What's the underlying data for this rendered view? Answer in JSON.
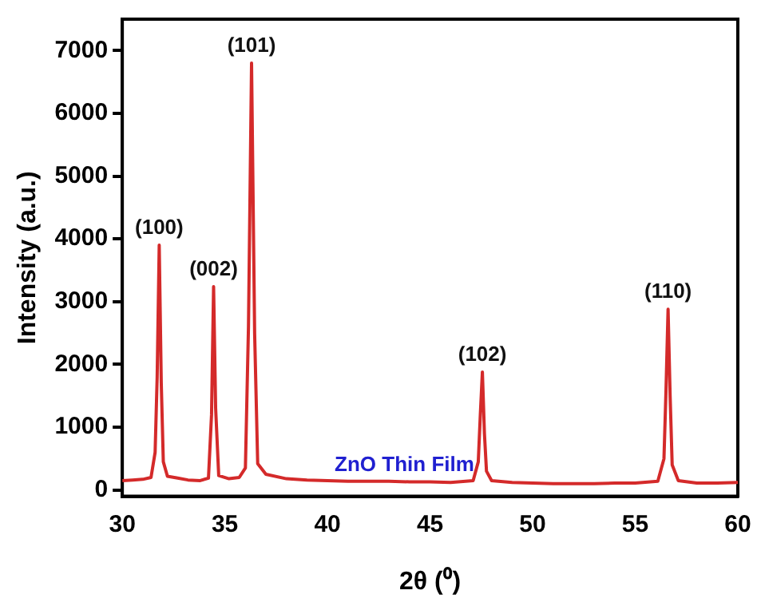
{
  "chart_data": {
    "type": "line",
    "xlabel": "2θ (⁰)",
    "ylabel": "Intensity (a.u.)",
    "x": [
      30,
      30.5,
      31,
      31.4,
      31.6,
      31.7,
      31.8,
      31.9,
      32.0,
      32.2,
      32.7,
      33.2,
      33.8,
      34.2,
      34.35,
      34.45,
      34.55,
      34.7,
      35.2,
      35.7,
      36.0,
      36.15,
      36.3,
      36.45,
      36.6,
      37.0,
      38,
      39,
      40,
      41,
      42,
      43,
      44,
      45,
      46,
      47.1,
      47.35,
      47.45,
      47.55,
      47.65,
      47.75,
      48.0,
      49,
      50,
      51,
      52,
      53,
      54,
      55,
      56.1,
      56.4,
      56.5,
      56.6,
      56.7,
      56.8,
      57.1,
      58,
      59,
      60
    ],
    "series": [
      {
        "color": "#d42a2a",
        "values": [
          150,
          160,
          170,
          200,
          600,
          1800,
          3900,
          1700,
          450,
          220,
          190,
          160,
          150,
          190,
          1200,
          3240,
          1300,
          230,
          180,
          200,
          350,
          2600,
          6800,
          2500,
          420,
          250,
          180,
          160,
          150,
          140,
          140,
          140,
          130,
          130,
          120,
          150,
          450,
          1200,
          1880,
          900,
          300,
          150,
          120,
          110,
          100,
          100,
          100,
          110,
          110,
          140,
          500,
          1600,
          2880,
          1500,
          400,
          150,
          110,
          110,
          120
        ]
      }
    ],
    "xlim": [
      30,
      60
    ],
    "xticks": [
      30,
      35,
      40,
      45,
      50,
      55,
      60
    ],
    "ylim": [
      -100,
      7500
    ],
    "yticks": [
      0,
      1000,
      2000,
      3000,
      4000,
      5000,
      6000,
      7000
    ],
    "grid": false,
    "legend": false,
    "marker": "none",
    "line_style": "solid",
    "annotations": [
      {
        "text": "(100)",
        "x": 31.8,
        "y": 3900
      },
      {
        "text": "(002)",
        "x": 34.45,
        "y": 3240
      },
      {
        "text": "(101)",
        "x": 36.3,
        "y": 6800
      },
      {
        "text": "(102)",
        "x": 47.55,
        "y": 1880
      },
      {
        "text": "(110)",
        "x": 56.6,
        "y": 2880
      },
      "ZnO Thin Film"
    ]
  }
}
